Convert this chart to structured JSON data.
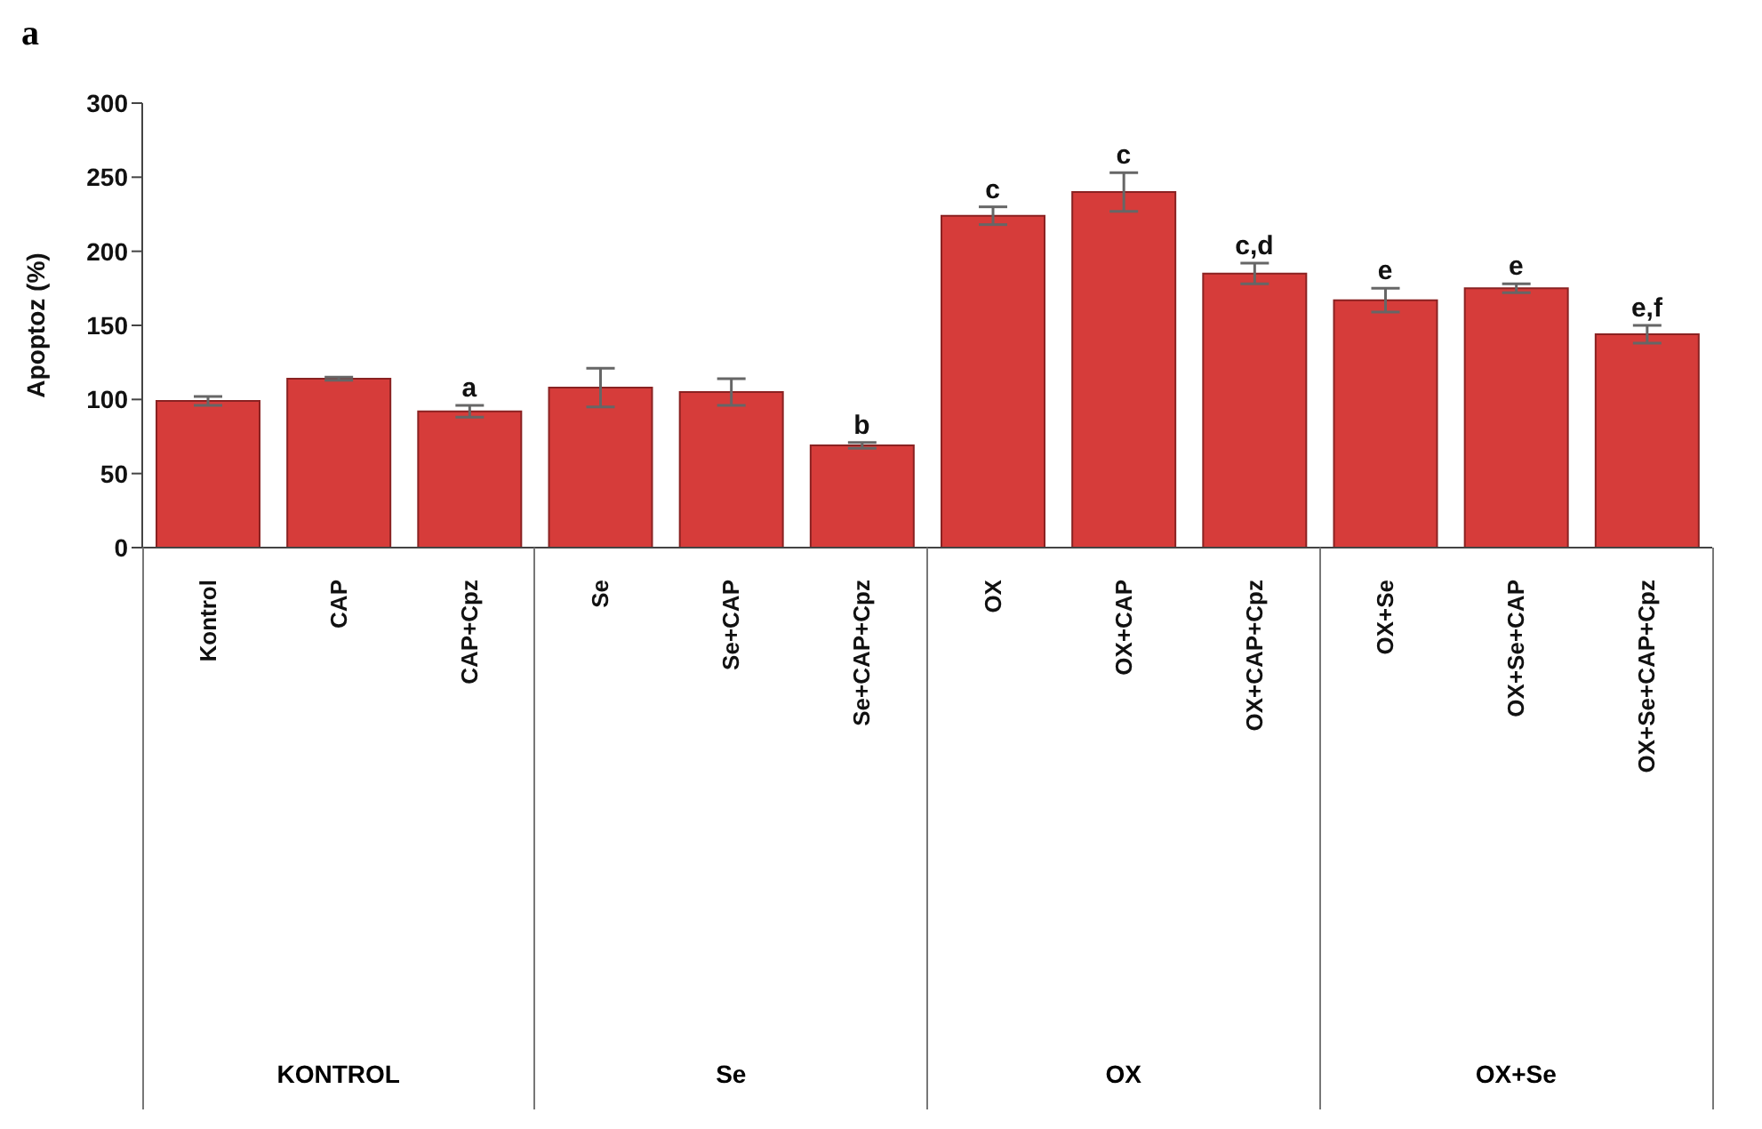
{
  "chart_data": {
    "type": "bar",
    "title": "a",
    "ylabel": "Apoptoz (%)",
    "categories": [
      "Kontrol",
      "CAP",
      "CAP+Cpz",
      "Se",
      "Se+CAP",
      "Se+CAP+Cpz",
      "OX",
      "OX+CAP",
      "OX+CAP+Cpz",
      "OX+Se",
      "OX+Se+CAP",
      "OX+Se+CAP+Cpz"
    ],
    "values": [
      99,
      114,
      92,
      108,
      105,
      69,
      224,
      240,
      185,
      167,
      175,
      144
    ],
    "errors": [
      3,
      1,
      4,
      13,
      9,
      2,
      6,
      13,
      7,
      8,
      3,
      6
    ],
    "color": "#d63c3a",
    "ylim": [
      0,
      300
    ],
    "yticks": [
      0,
      50,
      100,
      150,
      200,
      250,
      300
    ],
    "grid": false,
    "legend": false,
    "annotations": [
      {
        "text": "a",
        "x": "CAP+Cpz",
        "y": 96
      },
      {
        "text": "b",
        "x": "Se+CAP+Cpz",
        "y": 71
      },
      {
        "text": "c",
        "x": "OX",
        "y": 230
      },
      {
        "text": "c",
        "x": "OX+CAP",
        "y": 253
      },
      {
        "text": "c,d",
        "x": "OX+CAP+Cpz",
        "y": 192
      },
      {
        "text": "e",
        "x": "OX+Se",
        "y": 175
      },
      {
        "text": "e",
        "x": "OX+Se+CAP",
        "y": 178
      },
      {
        "text": "e,f",
        "x": "OX+Se+CAP+Cpz",
        "y": 150
      },
      "KONTROL",
      "Se",
      "OX",
      "OX+Se"
    ]
  }
}
